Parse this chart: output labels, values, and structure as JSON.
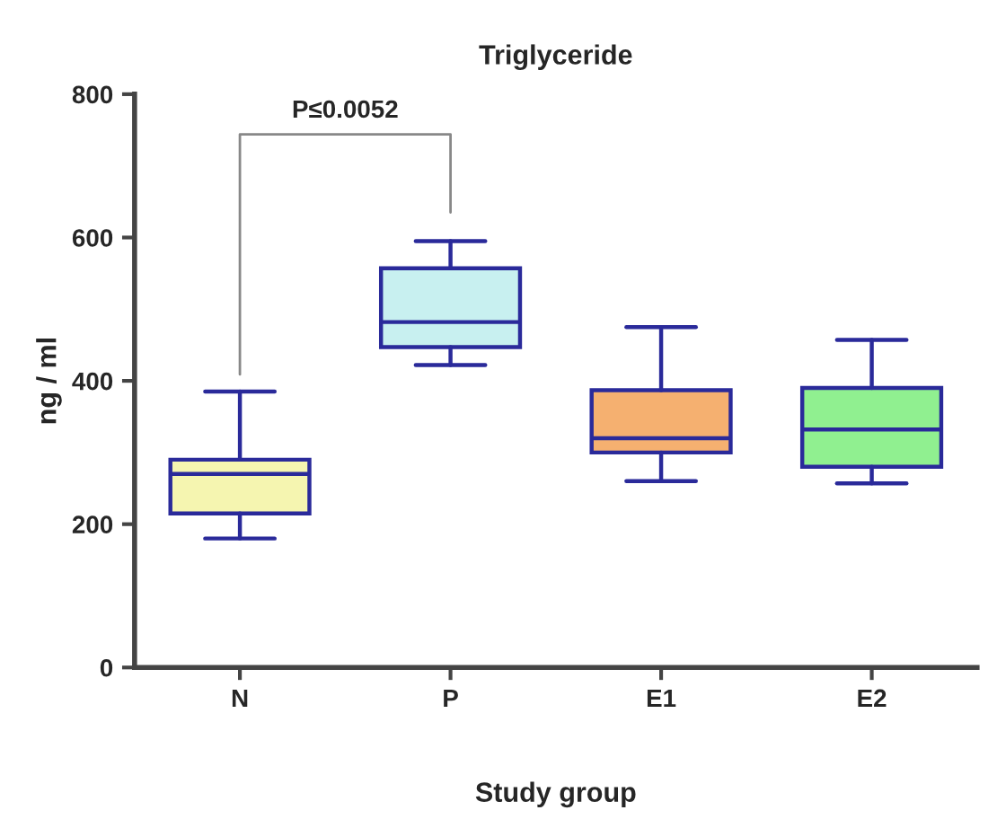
{
  "chart_data": {
    "type": "box",
    "title": "Triglyceride",
    "xlabel": "Study group",
    "ylabel": "ng / ml",
    "categories": [
      "N",
      "P",
      "E1",
      "E2"
    ],
    "colors": [
      "#f5f5b0",
      "#c8f0f0",
      "#f5b070",
      "#90f090"
    ],
    "boxes": [
      {
        "low": 180,
        "q1": 215,
        "median": 270,
        "q3": 290,
        "high": 385
      },
      {
        "low": 422,
        "q1": 447,
        "median": 482,
        "q3": 557,
        "high": 595
      },
      {
        "low": 260,
        "q1": 300,
        "median": 320,
        "q3": 387,
        "high": 475
      },
      {
        "low": 257,
        "q1": 280,
        "median": 332,
        "q3": 390,
        "high": 457
      }
    ],
    "annotations": [
      "P≤0.0052"
    ],
    "ylim": [
      0,
      800
    ],
    "yticks": [
      0,
      200,
      400,
      600,
      800
    ],
    "grid": false
  }
}
